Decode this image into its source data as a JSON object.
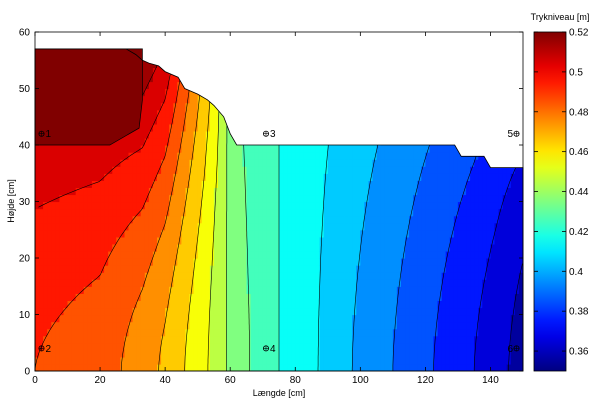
{
  "chart_data": {
    "type": "heatmap",
    "subtype": "filled-contour",
    "xlabel": "Længde [cm]",
    "ylabel": "Højde [cm]",
    "xlim": [
      0,
      150
    ],
    "ylim": [
      0,
      60
    ],
    "x_ticks": [
      0,
      20,
      40,
      60,
      80,
      100,
      120,
      140
    ],
    "y_ticks": [
      0,
      10,
      20,
      30,
      40,
      50,
      60
    ],
    "colorbar": {
      "title": "Trykniveau [m]",
      "range": [
        0.35,
        0.52
      ],
      "ticks": [
        0.36,
        0.38,
        0.4,
        0.42,
        0.44,
        0.46,
        0.48,
        0.5,
        0.52
      ],
      "colormap": "jet",
      "placement": "right"
    },
    "domain_outline": [
      [
        0,
        0
      ],
      [
        150,
        0
      ],
      [
        150,
        36
      ],
      [
        140,
        36
      ],
      [
        138,
        38
      ],
      [
        131,
        38
      ],
      [
        129,
        40
      ],
      [
        62,
        40
      ],
      [
        60,
        42
      ],
      [
        58,
        45
      ],
      [
        55,
        47
      ],
      [
        53,
        48
      ],
      [
        50,
        49
      ],
      [
        46,
        50
      ],
      [
        44,
        52
      ],
      [
        40,
        53
      ],
      [
        38,
        54
      ],
      [
        35,
        54.5
      ],
      [
        33,
        55
      ],
      [
        31,
        56
      ],
      [
        28,
        57
      ],
      [
        0,
        57
      ]
    ],
    "high_zone": {
      "value": 0.52,
      "outline": [
        [
          0,
          40
        ],
        [
          18,
          40
        ],
        [
          23,
          40
        ],
        [
          32,
          43
        ],
        [
          33,
          48
        ],
        [
          33,
          57
        ],
        [
          0,
          57
        ]
      ]
    },
    "contour_levels": [
      0.36,
      0.37,
      0.38,
      0.39,
      0.4,
      0.41,
      0.42,
      0.43,
      0.44,
      0.45,
      0.46,
      0.47,
      0.48,
      0.49,
      0.5,
      0.51
    ],
    "field_profile": {
      "description_x": [
        0,
        20,
        33,
        40,
        46,
        52,
        56,
        60,
        66,
        75,
        85,
        95,
        105,
        115,
        125,
        135,
        142,
        150
      ],
      "bottom_values": [
        0.49,
        0.485,
        0.475,
        0.468,
        0.46,
        0.452,
        0.445,
        0.438,
        0.43,
        0.42,
        0.412,
        0.402,
        0.394,
        0.386,
        0.378,
        0.37,
        0.364,
        0.355
      ],
      "top_values": [
        0.52,
        0.52,
        0.52,
        0.51,
        0.49,
        0.47,
        0.455,
        0.435,
        0.425,
        0.42,
        0.415,
        0.41,
        0.405,
        0.4,
        0.395,
        0.39,
        0.385,
        0.383
      ]
    },
    "markers": [
      {
        "label": "1",
        "x": 2,
        "y": 42
      },
      {
        "label": "2",
        "x": 2,
        "y": 4
      },
      {
        "label": "3",
        "x": 71,
        "y": 42
      },
      {
        "label": "4",
        "x": 71,
        "y": 4
      },
      {
        "label": "5",
        "x": 148,
        "y": 42
      },
      {
        "label": "6",
        "x": 148,
        "y": 4
      }
    ]
  }
}
